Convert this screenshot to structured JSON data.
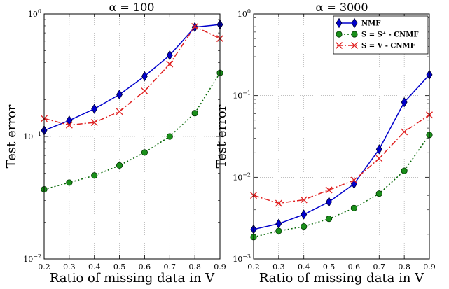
{
  "colors": {
    "NMF": "#0000cc",
    "S_plus": "#006400",
    "S_V": "#e02020",
    "S_plus_marker": "#1a8f1a"
  },
  "chart_data": [
    {
      "type": "line",
      "title": "α = 100",
      "xlabel": "Ratio of missing data in V",
      "ylabel": "Test error",
      "yscale": "log",
      "xlim": [
        0.2,
        0.9
      ],
      "ylim": [
        0.01,
        1
      ],
      "grid": true,
      "x": [
        0.2,
        0.3,
        0.4,
        0.5,
        0.6,
        0.7,
        0.8,
        0.9
      ],
      "xticklabels": [
        "0.2",
        "0.3",
        "0.4",
        "0.5",
        "0.6",
        "0.7",
        "0.8",
        "0.9"
      ],
      "yticks": [
        {
          "value": 0.01,
          "base": "10",
          "exp": "−2"
        },
        {
          "value": 0.1,
          "base": "10",
          "exp": "−1"
        },
        {
          "value": 1,
          "base": "10",
          "exp": "0"
        }
      ],
      "series": [
        {
          "name": "NMF",
          "values": [
            0.112,
            0.135,
            0.168,
            0.22,
            0.31,
            0.46,
            0.78,
            0.82
          ]
        },
        {
          "name": "S = S⁺ - CNMF",
          "values": [
            0.037,
            0.042,
            0.048,
            0.058,
            0.074,
            0.1,
            0.155,
            0.33
          ]
        },
        {
          "name": "S = V - CNMF",
          "values": [
            0.14,
            0.124,
            0.13,
            0.16,
            0.235,
            0.39,
            0.79,
            0.63
          ]
        }
      ]
    },
    {
      "type": "line",
      "title": "α = 3000",
      "xlabel": "Ratio of missing data in V",
      "ylabel": "Test error",
      "yscale": "log",
      "xlim": [
        0.2,
        0.9
      ],
      "ylim": [
        0.001,
        1
      ],
      "grid": true,
      "legend": "top-right",
      "x": [
        0.2,
        0.3,
        0.4,
        0.5,
        0.6,
        0.7,
        0.8,
        0.9
      ],
      "xticklabels": [
        "0.2",
        "0.3",
        "0.4",
        "0.5",
        "0.6",
        "0.7",
        "0.8",
        "0.9"
      ],
      "yticks": [
        {
          "value": 0.001,
          "base": "10",
          "exp": "−3"
        },
        {
          "value": 0.01,
          "base": "10",
          "exp": "−2"
        },
        {
          "value": 0.1,
          "base": "10",
          "exp": "−1"
        },
        {
          "value": 1,
          "base": "10",
          "exp": "0"
        }
      ],
      "series": [
        {
          "name": "NMF",
          "values": [
            0.0023,
            0.0027,
            0.0035,
            0.005,
            0.0083,
            0.022,
            0.083,
            0.18
          ]
        },
        {
          "name": "S = S⁺ - CNMF",
          "values": [
            0.00185,
            0.0022,
            0.0025,
            0.0031,
            0.0042,
            0.0063,
            0.012,
            0.033
          ]
        },
        {
          "name": "S = V - CNMF",
          "values": [
            0.006,
            0.0048,
            0.0053,
            0.007,
            0.0092,
            0.017,
            0.036,
            0.058
          ]
        }
      ]
    }
  ]
}
